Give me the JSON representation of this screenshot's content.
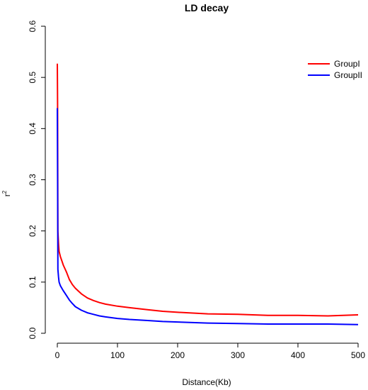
{
  "chart_data": {
    "type": "line",
    "title": "LD decay",
    "xlabel": "Distance(Kb)",
    "ylabel": "r",
    "ylabel_superscript": "2",
    "xlim": [
      0,
      500
    ],
    "ylim": [
      0,
      0.6
    ],
    "xticks": [
      "0",
      "100",
      "200",
      "300",
      "400",
      "500"
    ],
    "yticks": [
      "0.0",
      "0.1",
      "0.2",
      "0.3",
      "0.4",
      "0.5",
      "0.6"
    ],
    "grid": false,
    "legend_position": "top-right",
    "series": [
      {
        "name": "GroupI",
        "color": "#ff0000",
        "x": [
          0,
          0.5,
          1,
          2,
          3,
          5,
          8,
          10,
          15,
          20,
          25,
          30,
          40,
          50,
          60,
          70,
          80,
          100,
          120,
          150,
          175,
          200,
          250,
          300,
          350,
          400,
          450,
          500
        ],
        "y": [
          0.527,
          0.44,
          0.2,
          0.175,
          0.16,
          0.15,
          0.14,
          0.133,
          0.12,
          0.105,
          0.095,
          0.088,
          0.077,
          0.069,
          0.064,
          0.06,
          0.057,
          0.053,
          0.05,
          0.046,
          0.043,
          0.041,
          0.038,
          0.037,
          0.035,
          0.035,
          0.034,
          0.036
        ]
      },
      {
        "name": "GroupII",
        "color": "#0000ff",
        "x": [
          0,
          0.5,
          1,
          2,
          3,
          5,
          8,
          10,
          15,
          20,
          25,
          30,
          40,
          50,
          60,
          70,
          80,
          100,
          120,
          150,
          175,
          200,
          250,
          300,
          350,
          400,
          450,
          500
        ],
        "y": [
          0.44,
          0.3,
          0.125,
          0.11,
          0.1,
          0.093,
          0.087,
          0.083,
          0.074,
          0.065,
          0.058,
          0.052,
          0.045,
          0.04,
          0.037,
          0.034,
          0.032,
          0.029,
          0.027,
          0.025,
          0.023,
          0.022,
          0.02,
          0.019,
          0.018,
          0.018,
          0.018,
          0.017
        ]
      }
    ]
  }
}
